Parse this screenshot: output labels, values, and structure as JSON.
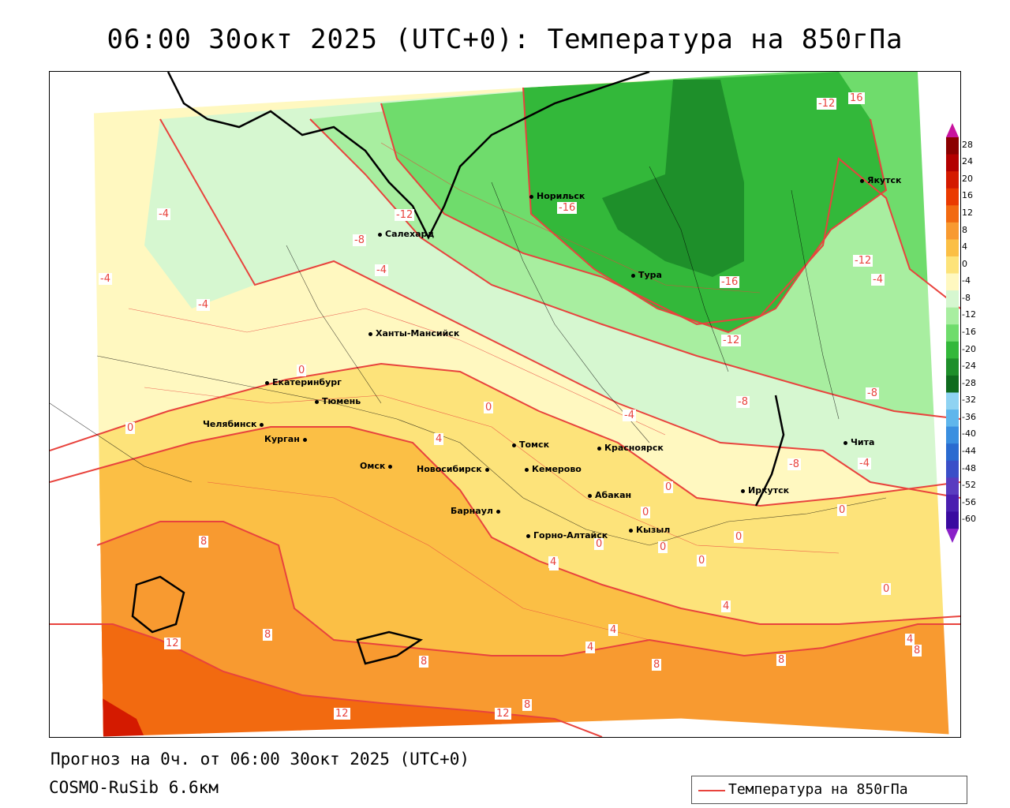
{
  "title": "06:00 30окт 2025 (UTC+0): Температура на 850гПа",
  "footer": {
    "forecast_line": "Прогноз на 0ч. от 06:00 30окт 2025 (UTC+0)",
    "model_line": "COSMO-RuSib 6.6км"
  },
  "legend": {
    "label": "Температура на 850гПа",
    "line_color": "#e8433d"
  },
  "colorbar": {
    "ticks": [
      "28",
      "24",
      "20",
      "16",
      "12",
      "8",
      "4",
      "0",
      "-4",
      "-8",
      "-12",
      "-16",
      "-20",
      "-24",
      "-28",
      "-32",
      "-36",
      "-40",
      "-44",
      "-48",
      "-52",
      "-56",
      "-60"
    ],
    "colors": [
      "#8b0000",
      "#b30000",
      "#d41a00",
      "#ea3a00",
      "#f26a10",
      "#f89a30",
      "#fbbf45",
      "#fde37a",
      "#fff8c0",
      "#d6f7d0",
      "#a8eea0",
      "#6fdc6c",
      "#33b83a",
      "#1e8f2a",
      "#0f6b1e",
      "#8fd3f2",
      "#5fb6ec",
      "#3a8fe0",
      "#2a6bd0",
      "#3a4fc8",
      "#5a3cc0",
      "#4a1fb0",
      "#3a0aa0"
    ],
    "top_arrow_color": "#c8139e",
    "bottom_arrow_color": "#8a20c8"
  },
  "cities": [
    {
      "name": "Норильск"
    },
    {
      "name": "Якутск"
    },
    {
      "name": "Салехард"
    },
    {
      "name": "Тура"
    },
    {
      "name": "Ханты-Мансийск"
    },
    {
      "name": "Екатеринбург"
    },
    {
      "name": "Тюмень"
    },
    {
      "name": "Челябинск"
    },
    {
      "name": "Курган"
    },
    {
      "name": "Омск"
    },
    {
      "name": "Новосибирск"
    },
    {
      "name": "Томск"
    },
    {
      "name": "Кемерово"
    },
    {
      "name": "Красноярск"
    },
    {
      "name": "Абакан"
    },
    {
      "name": "Барнаул"
    },
    {
      "name": "Горно-Алтайск"
    },
    {
      "name": "Кызыл"
    },
    {
      "name": "Иркутск"
    },
    {
      "name": "Чита"
    }
  ],
  "contour_labels": [
    "-12",
    "16",
    "-16",
    "-12",
    "-4",
    "-8",
    "-4",
    "-4",
    "-4",
    "-16",
    "-12",
    "-12",
    "0",
    "-8",
    "0",
    "0",
    "-4",
    "-8",
    "-4",
    "0",
    "0",
    "0",
    "0",
    "0",
    "8",
    "12",
    "8",
    "8",
    "4",
    "4",
    "4",
    "4",
    "4",
    "8",
    "8",
    "0",
    "4",
    "8",
    "12",
    "8",
    "12",
    "4",
    "0",
    "-8",
    "0",
    "-4"
  ]
}
